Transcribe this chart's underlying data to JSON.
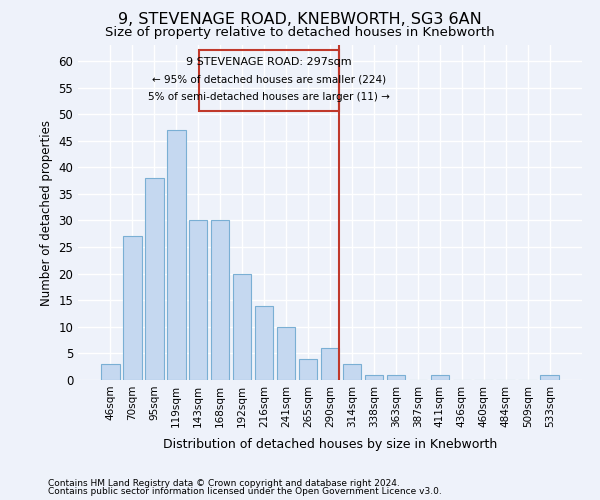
{
  "title1": "9, STEVENAGE ROAD, KNEBWORTH, SG3 6AN",
  "title2": "Size of property relative to detached houses in Knebworth",
  "xlabel": "Distribution of detached houses by size in Knebworth",
  "ylabel": "Number of detached properties",
  "bar_labels": [
    "46sqm",
    "70sqm",
    "95sqm",
    "119sqm",
    "143sqm",
    "168sqm",
    "192sqm",
    "216sqm",
    "241sqm",
    "265sqm",
    "290sqm",
    "314sqm",
    "338sqm",
    "363sqm",
    "387sqm",
    "411sqm",
    "436sqm",
    "460sqm",
    "484sqm",
    "509sqm",
    "533sqm"
  ],
  "bar_values": [
    3,
    27,
    38,
    47,
    30,
    30,
    20,
    14,
    10,
    4,
    6,
    3,
    1,
    1,
    0,
    1,
    0,
    0,
    0,
    0,
    1
  ],
  "bar_color": "#c5d8f0",
  "bar_edge_color": "#7aafd4",
  "property_label": "9 STEVENAGE ROAD: 297sqm",
  "annotation_line1": "← 95% of detached houses are smaller (224)",
  "annotation_line2": "5% of semi-detached houses are larger (11) →",
  "vline_color": "#c0392b",
  "box_color": "#c0392b",
  "ylim": [
    0,
    63
  ],
  "yticks": [
    0,
    5,
    10,
    15,
    20,
    25,
    30,
    35,
    40,
    45,
    50,
    55,
    60
  ],
  "footer1": "Contains HM Land Registry data © Crown copyright and database right 2024.",
  "footer2": "Contains public sector information licensed under the Open Government Licence v3.0.",
  "bg_color": "#eef2fa",
  "grid_color": "#ffffff",
  "vline_x": 10.42
}
